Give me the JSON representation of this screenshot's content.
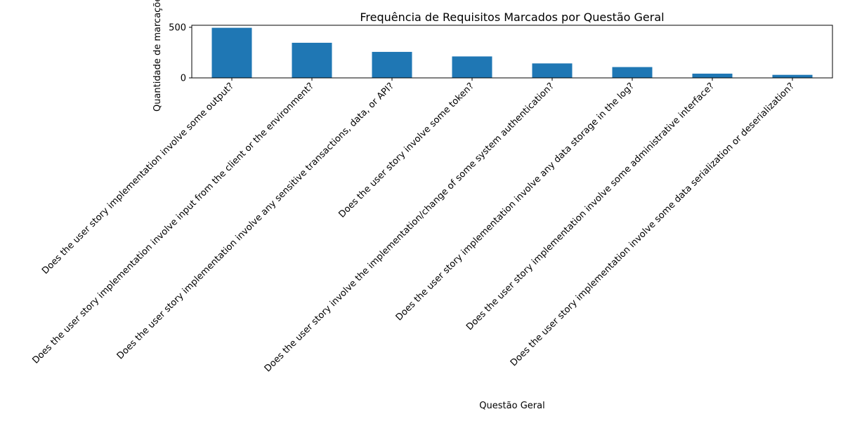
{
  "chart_data": {
    "type": "bar",
    "title": "Frequência de Requisitos Marcados por Questão Geral",
    "xlabel": "Questão Geral",
    "ylabel": "Quantidade de marcações",
    "categories": [
      "Does the user story implementation involve some output?",
      "Does the user story implementation involve input from the client or the environment?",
      "Does the user story implementation involve any sensitive transactions, data, or API?",
      "Does the user story involve some token?",
      "Does the user story involve the implementation/change of some system authentication?",
      "Does the user story implementation involve any data storage in the log?",
      "Does the user story implementation involve some administrative interface?",
      "Does the user story implementation involve some data serialization or deserialization?"
    ],
    "values": [
      495,
      347,
      257,
      212,
      143,
      107,
      42,
      30
    ],
    "ylim": [
      0,
      520
    ],
    "yticks": [
      0,
      500
    ],
    "grid": false,
    "legend": false,
    "bar_color": "#1f77b4"
  }
}
